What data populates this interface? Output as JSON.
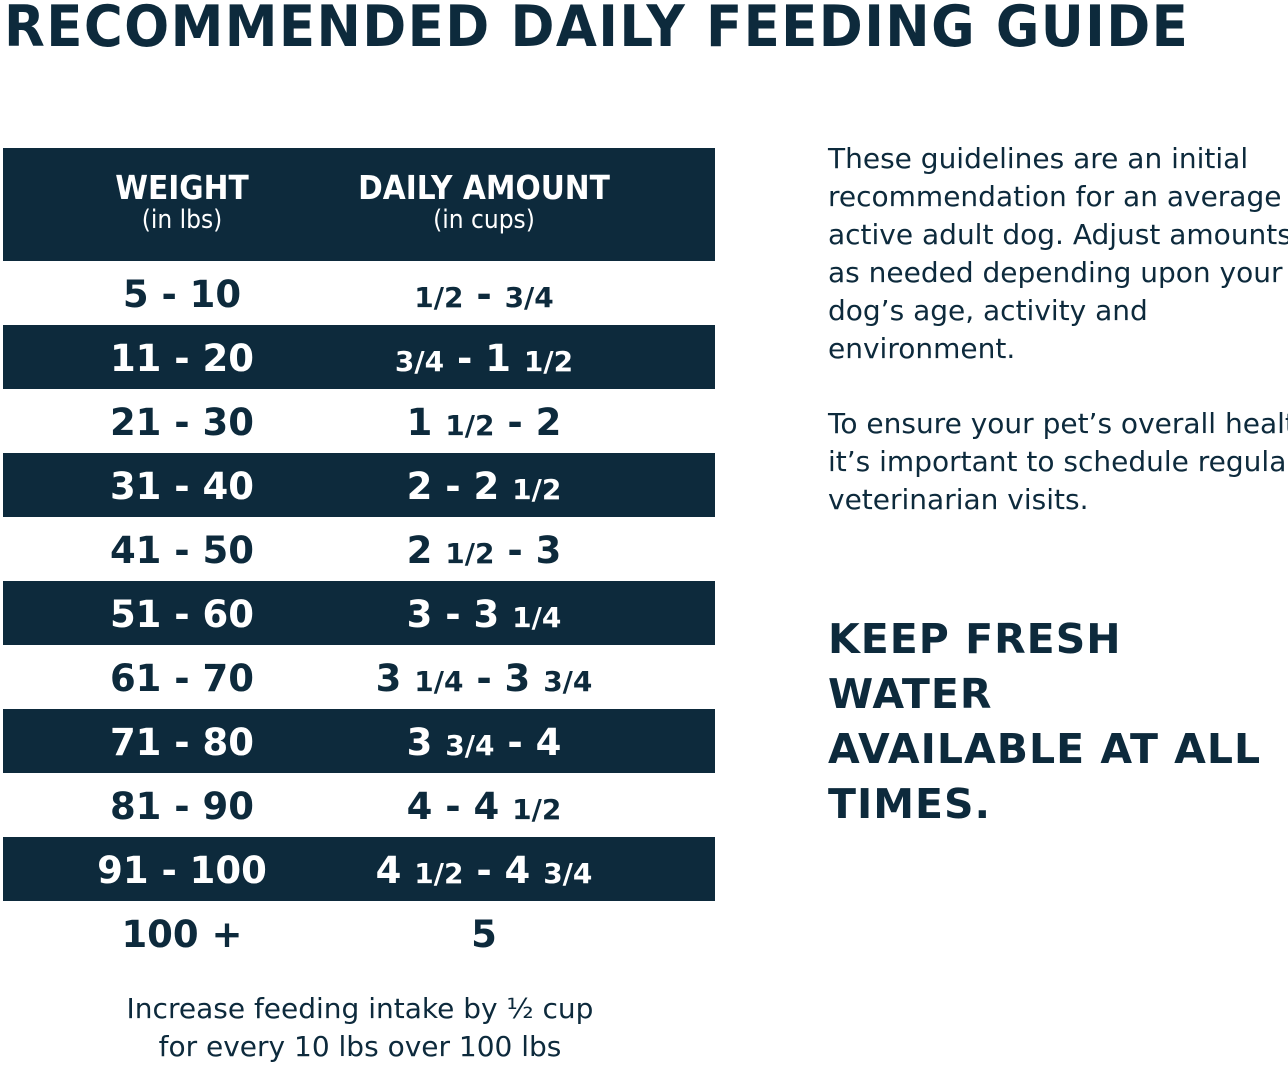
{
  "title": "RECOMMENDED DAILY FEEDING GUIDE",
  "table": {
    "headers": [
      {
        "main": "WEIGHT",
        "sub": "(in lbs)"
      },
      {
        "main": "DAILY AMOUNT",
        "sub": "(in cups)"
      }
    ],
    "rows": [
      {
        "weight": "5 - 10",
        "amount": "1/2 - 3/4"
      },
      {
        "weight": "11 - 20",
        "amount": "3/4 - 1 1/2"
      },
      {
        "weight": "21 - 30",
        "amount": "1 1/2 - 2"
      },
      {
        "weight": "31 - 40",
        "amount": "2 - 2 1/2"
      },
      {
        "weight": "41 - 50",
        "amount": "2 1/2 - 3"
      },
      {
        "weight": "51 - 60",
        "amount": "3 - 3 1/4"
      },
      {
        "weight": "61 - 70",
        "amount": "3 1/4 - 3 3/4"
      },
      {
        "weight": "71 - 80",
        "amount": "3 3/4 - 4"
      },
      {
        "weight": "81 - 90",
        "amount": "4 - 4 1/2"
      },
      {
        "weight": "91 - 100",
        "amount": "4 1/2 - 4 3/4"
      },
      {
        "weight": "100 +",
        "amount": "5"
      }
    ]
  },
  "note": [
    "Increase feeding intake by ½ cup",
    "for every 10 lbs over 100 lbs"
  ],
  "paragraph1": [
    "These guidelines are an initial",
    "recommendation for an average",
    "active adult dog. Adjust amounts",
    "as needed depending upon your",
    "dog’s age, activity and",
    "environment."
  ],
  "paragraph2": [
    "To ensure your pet’s overall health,",
    "it’s important to schedule regular",
    "veterinarian visits."
  ],
  "water": [
    "KEEP FRESH WATER",
    "AVAILABLE AT ALL",
    "TIMES."
  ],
  "colors": {
    "navy": "#0d2a3c"
  }
}
